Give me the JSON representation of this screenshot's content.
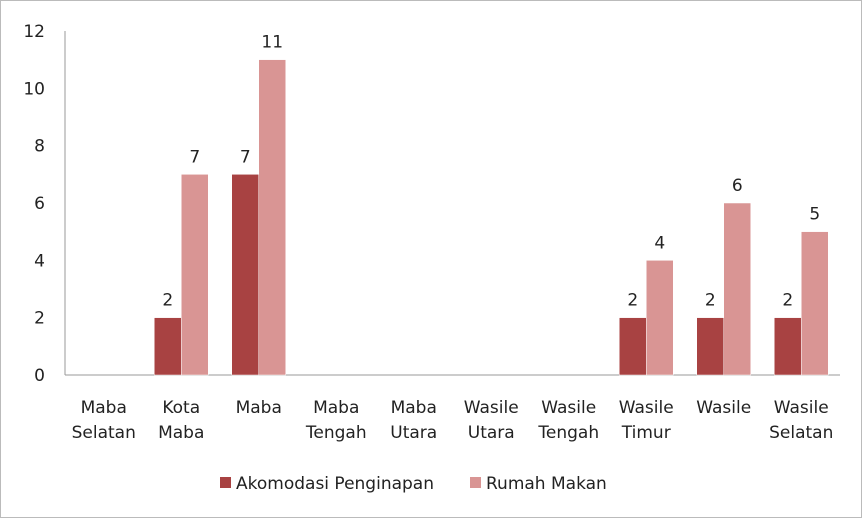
{
  "chart_data": {
    "type": "bar",
    "categories": [
      [
        "Maba",
        "Selatan"
      ],
      [
        "Kota",
        "Maba"
      ],
      [
        "Maba"
      ],
      [
        "Maba",
        "Tengah"
      ],
      [
        "Maba",
        "Utara"
      ],
      [
        "Wasile",
        "Utara"
      ],
      [
        "Wasile",
        "Tengah"
      ],
      [
        "Wasile",
        "Timur"
      ],
      [
        "Wasile"
      ],
      [
        "Wasile",
        "Selatan"
      ]
    ],
    "series": [
      {
        "name": "Akomodasi Penginapan",
        "color": "#a84242",
        "values": [
          null,
          2,
          7,
          null,
          null,
          null,
          null,
          2,
          2,
          2
        ]
      },
      {
        "name": "Rumah Makan",
        "color": "#d99594",
        "values": [
          null,
          7,
          11,
          null,
          null,
          null,
          null,
          4,
          6,
          5
        ]
      }
    ],
    "ylim": [
      0,
      12
    ],
    "yticks": [
      0,
      2,
      4,
      6,
      8,
      10,
      12
    ],
    "grid": false,
    "legend": "bottom"
  }
}
